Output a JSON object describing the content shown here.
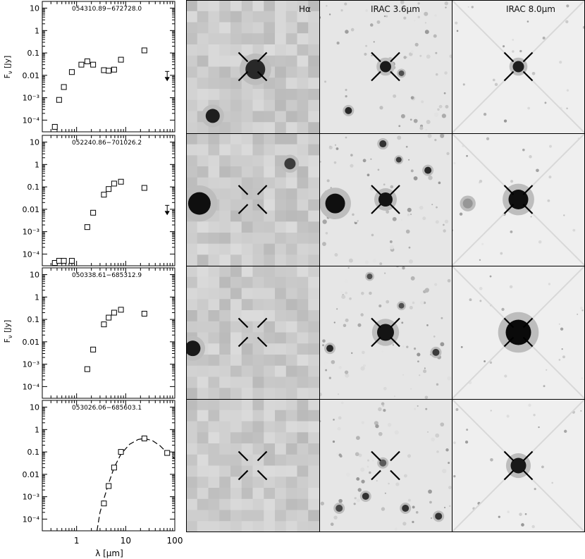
{
  "figure": {
    "x_axis_label": "λ [μm]",
    "y_axis_label": "F",
    "y_axis_label_sub": "ν",
    "y_axis_label_unit": "[Jy]",
    "x_tick_labels": [
      "1",
      "10",
      "100"
    ],
    "image_columns": [
      "Hα",
      "IRAC 3.6μm",
      "IRAC 8.0μm"
    ]
  },
  "chart_data": [
    {
      "type": "scatter",
      "title": "054310.89−672728.0",
      "xscale": "log",
      "yscale": "log",
      "xlim": [
        0.2,
        100
      ],
      "ylim": [
        3e-05,
        20
      ],
      "ytick_labels": [
        "10",
        "1",
        "0.1",
        "0.01",
        "10⁻³",
        "10⁻⁴"
      ],
      "ytick_values": [
        10,
        1,
        0.1,
        0.01,
        0.001,
        0.0001
      ],
      "points": [
        [
          0.36,
          5e-05
        ],
        [
          0.44,
          0.0008
        ],
        [
          0.55,
          0.003
        ],
        [
          0.8,
          0.014
        ],
        [
          1.25,
          0.03
        ],
        [
          1.65,
          0.042
        ],
        [
          2.17,
          0.03
        ],
        [
          3.6,
          0.017
        ],
        [
          4.5,
          0.016
        ],
        [
          5.8,
          0.018
        ],
        [
          8.0,
          0.05
        ],
        [
          24,
          0.13
        ]
      ],
      "upper_limits": [
        [
          70,
          0.009
        ]
      ],
      "model_curve": []
    },
    {
      "type": "scatter",
      "title": "052240.86−701026.2",
      "xscale": "log",
      "yscale": "log",
      "xlim": [
        0.2,
        100
      ],
      "ylim": [
        3e-05,
        20
      ],
      "ytick_labels": [
        "10",
        "1",
        "0.1",
        "0.01",
        "10⁻³",
        "10⁻⁴"
      ],
      "ytick_values": [
        10,
        1,
        0.1,
        0.01,
        0.001,
        0.0001
      ],
      "points": [
        [
          0.36,
          3e-05
        ],
        [
          0.44,
          5e-05
        ],
        [
          0.55,
          5e-05
        ],
        [
          0.8,
          5e-05
        ],
        [
          1.65,
          0.0016
        ],
        [
          2.17,
          0.007
        ],
        [
          3.6,
          0.045
        ],
        [
          4.5,
          0.08
        ],
        [
          5.8,
          0.14
        ],
        [
          8.0,
          0.17
        ],
        [
          24,
          0.09
        ]
      ],
      "upper_limits": [
        [
          70,
          0.009
        ]
      ],
      "model_curve": []
    },
    {
      "type": "scatter",
      "title": "050338.61−685312.9",
      "xscale": "log",
      "yscale": "log",
      "xlim": [
        0.2,
        100
      ],
      "ylim": [
        3e-05,
        20
      ],
      "ytick_labels": [
        "10",
        "1",
        "0.1",
        "0.01",
        "10⁻³",
        "10⁻⁴"
      ],
      "ytick_values": [
        10,
        1,
        0.1,
        0.01,
        0.001,
        0.0001
      ],
      "points": [
        [
          1.65,
          0.0006
        ],
        [
          2.17,
          0.0045
        ],
        [
          3.6,
          0.06
        ],
        [
          4.5,
          0.12
        ],
        [
          5.8,
          0.2
        ],
        [
          8.0,
          0.27
        ],
        [
          24,
          0.18
        ]
      ],
      "upper_limits": [],
      "model_curve": []
    },
    {
      "type": "scatter",
      "title": "053026.06−685603.1",
      "xscale": "log",
      "yscale": "log",
      "xlim": [
        0.2,
        100
      ],
      "ylim": [
        3e-05,
        20
      ],
      "ytick_labels": [
        "10",
        "1",
        "0.1",
        "0.01",
        "10⁻³",
        "10⁻⁴"
      ],
      "ytick_values": [
        10,
        1,
        0.1,
        0.01,
        0.001,
        0.0001
      ],
      "points": [
        [
          3.6,
          0.0005
        ],
        [
          4.5,
          0.003
        ],
        [
          5.8,
          0.02
        ],
        [
          8.0,
          0.1
        ],
        [
          24,
          0.4
        ],
        [
          70,
          0.09
        ]
      ],
      "upper_limits": [],
      "model_curve": [
        [
          2.6,
          3e-05
        ],
        [
          3.0,
          0.0002
        ],
        [
          3.6,
          0.0008
        ],
        [
          4.5,
          0.004
        ],
        [
          5.8,
          0.02
        ],
        [
          8,
          0.08
        ],
        [
          12,
          0.22
        ],
        [
          18,
          0.36
        ],
        [
          24,
          0.4
        ],
        [
          35,
          0.32
        ],
        [
          50,
          0.19
        ],
        [
          70,
          0.09
        ],
        [
          100,
          0.05
        ]
      ]
    }
  ]
}
